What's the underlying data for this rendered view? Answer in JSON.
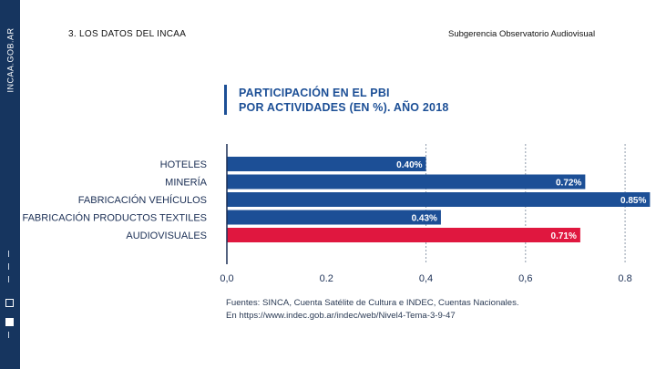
{
  "sidebar": {
    "brand": "INCAA.GOB.AR"
  },
  "header": {
    "section_title": "3. LOS DATOS DEL INCAA",
    "right_title": "Subgerencia Observatorio Audiovisual"
  },
  "chart_data": {
    "type": "bar",
    "orientation": "horizontal",
    "title_lines": [
      "PARTICIPACIÓN EN EL PBI",
      "POR ACTIVIDADES (EN %). AÑO 2018"
    ],
    "categories": [
      "HOTELES",
      "MINERÍA",
      "FABRICACIÓN VEHÍCULOS",
      "FABRICACIÓN PRODUCTOS TEXTILES",
      "AUDIOVISUALES"
    ],
    "values": [
      0.4,
      0.72,
      0.85,
      0.43,
      0.71
    ],
    "value_labels": [
      "0.40%",
      "0.72%",
      "0.85%",
      "0.43%",
      "0.71%"
    ],
    "highlight_index": 4,
    "xlim": [
      0,
      0.82
    ],
    "xticks": [
      0.0,
      0.2,
      0.4,
      0.6,
      0.8
    ],
    "xtick_labels": [
      "0,0",
      "0.2",
      "0,4",
      "0,6",
      "0.8"
    ],
    "gridlines": "dotted at 0.4, 0.6, 0.8",
    "xlabel": "",
    "ylabel": ""
  },
  "colors": {
    "bar": "#1c4f96",
    "highlight": "#e0173f",
    "grid": "#8f9bab",
    "sidebar": "#16355f"
  },
  "sources": {
    "line1": "Fuentes: SINCA, Cuenta Satélite de Cultura e INDEC, Cuentas Nacionales.",
    "line2": "En https://www.indec.gob.ar/indec/web/Nivel4-Tema-3-9-47"
  }
}
